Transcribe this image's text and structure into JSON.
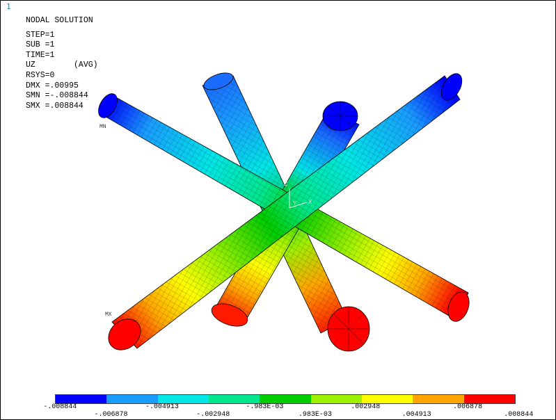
{
  "window": {
    "corner_number": "1"
  },
  "info": {
    "title": "NODAL SOLUTION",
    "lines": [
      "STEP=1",
      "SUB =1",
      "TIME=1",
      "UZ        (AVG)",
      "RSYS=0",
      "DMX =.00995",
      "SMN =-.008844",
      "SMX =.008844"
    ]
  },
  "markers": {
    "min": "MN",
    "max": "MX"
  },
  "axis_triad": {
    "x": "X",
    "y": "Y",
    "z": "Z"
  },
  "legend": {
    "colors": [
      "#0000ff",
      "#1a9cff",
      "#00e6e6",
      "#00e68c",
      "#00cc00",
      "#9cf000",
      "#ffff00",
      "#ffa500",
      "#ff0000"
    ],
    "labels_top": [
      "-.008844",
      "-.004913",
      "-.983E-03",
      ".002948",
      ".006878"
    ],
    "labels_bottom": [
      "-.006878",
      "-.002948",
      ".983E-03",
      ".004913",
      ".008844"
    ]
  }
}
